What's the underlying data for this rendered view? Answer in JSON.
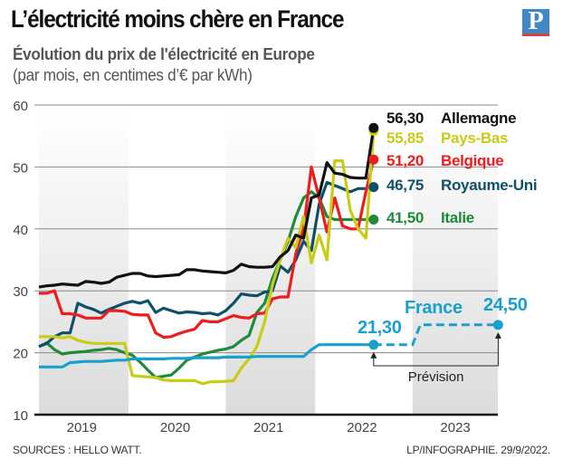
{
  "header": {
    "title": "L’électricité moins chère en France",
    "subtitle": "Évolution du prix de l'électricité en Europe",
    "unit_note": "(par mois, en centimes d’€ par kWh)",
    "logo_letter": "P"
  },
  "footer": {
    "source": "SOURCES : HELLO WATT.",
    "credit": "LP/INFOGRAPHIE.  29/9/2022."
  },
  "chart_data": {
    "type": "line",
    "title": "Évolution du prix de l'électricité en Europe",
    "ylabel": "(par mois, en centimes d’€ par kWh)",
    "ylim": [
      10,
      60
    ],
    "yticks": [
      "10",
      "20",
      "30",
      "40",
      "50",
      "60"
    ],
    "xticks": [
      "2019",
      "2020",
      "2021",
      "2022",
      "2023"
    ],
    "xlim": [
      "2019-01",
      "2023-12"
    ],
    "grid": true,
    "x": [
      "2019-01",
      "2019-02",
      "2019-03",
      "2019-04",
      "2019-05",
      "2019-06",
      "2019-07",
      "2019-08",
      "2019-09",
      "2019-10",
      "2019-11",
      "2019-12",
      "2020-01",
      "2020-02",
      "2020-03",
      "2020-04",
      "2020-05",
      "2020-06",
      "2020-07",
      "2020-08",
      "2020-09",
      "2020-10",
      "2020-11",
      "2020-12",
      "2021-01",
      "2021-02",
      "2021-03",
      "2021-04",
      "2021-05",
      "2021-06",
      "2021-07",
      "2021-08",
      "2021-09",
      "2021-10",
      "2021-11",
      "2021-12",
      "2022-01",
      "2022-02",
      "2022-03",
      "2022-04",
      "2022-05",
      "2022-06",
      "2022-07",
      "2022-08"
    ],
    "series": [
      {
        "name": "Italie",
        "last_label": "41,50",
        "color": "#1e8a3c",
        "values": [
          21,
          21.6,
          20.5,
          19.8,
          20,
          20.1,
          20.2,
          20.4,
          20.5,
          20.7,
          20.5,
          20,
          19.6,
          18.5,
          17.2,
          16,
          16.2,
          16.4,
          17.5,
          18.8,
          19.3,
          19.8,
          20.1,
          20.4,
          20.6,
          21,
          22,
          22.8,
          26.5,
          28,
          32,
          35,
          38,
          42,
          45,
          46,
          45,
          42,
          41.5,
          41.5,
          41.5,
          41.5,
          41.5,
          41.5
        ]
      },
      {
        "name": "Royaume-Uni",
        "last_label": "46,75",
        "color": "#0f5069",
        "values": [
          21,
          21.5,
          22.6,
          23.2,
          23.2,
          28,
          27.4,
          27,
          26.4,
          27,
          27.5,
          28,
          28.3,
          28,
          28.4,
          26.5,
          27.2,
          26.8,
          26.4,
          26.6,
          26.5,
          26.3,
          26.4,
          26.1,
          26.8,
          28,
          29.5,
          29.3,
          29.2,
          29.8,
          30,
          34,
          33,
          35,
          38,
          36.5,
          44,
          47.5,
          47,
          46.5,
          46,
          46.5,
          46.5,
          46.75
        ]
      },
      {
        "name": "Belgique",
        "last_label": "51,20",
        "color": "#ee1c1c",
        "values": [
          29.6,
          29.6,
          30,
          26.3,
          26.3,
          26.1,
          25.6,
          25.6,
          25.6,
          26.8,
          26.8,
          26.7,
          26.2,
          26.1,
          26.1,
          23.2,
          22.5,
          22.6,
          23.1,
          23.5,
          23.8,
          25.2,
          25,
          25,
          25.5,
          26,
          25.7,
          25.6,
          26.3,
          26.4,
          28.7,
          29,
          29,
          36,
          40,
          50,
          45,
          39.5,
          45,
          40.5,
          40,
          40,
          46,
          51.2
        ]
      },
      {
        "name": "Pays-Bas",
        "last_label": "55,85",
        "color": "#c8cc16",
        "values": [
          22.6,
          22.6,
          22.6,
          22.4,
          22.6,
          22,
          21.7,
          21.5,
          21.5,
          21.5,
          21.5,
          21.5,
          16.3,
          16.2,
          16.1,
          16,
          15.6,
          15.5,
          15.5,
          15.5,
          15.5,
          15,
          15.3,
          15.3,
          15.4,
          15.5,
          17.5,
          19,
          21,
          25,
          31,
          35,
          38.5,
          37,
          42,
          34.5,
          39,
          35,
          51,
          51,
          43,
          40,
          38.5,
          55.85
        ]
      },
      {
        "name": "Allemagne",
        "last_label": "56,30",
        "color": "#111111",
        "values": [
          30.6,
          30.8,
          30.9,
          31.1,
          31,
          30.9,
          31.5,
          31.4,
          31.2,
          31.4,
          32.2,
          32.5,
          32.8,
          32.8,
          32.4,
          32.3,
          32.4,
          32.5,
          32.6,
          33.4,
          33.4,
          33.2,
          33.1,
          33,
          32.9,
          33.3,
          34.3,
          33.9,
          33.8,
          33.8,
          33.9,
          35.5,
          36.5,
          39,
          38.5,
          45,
          45.5,
          50.7,
          49,
          48.8,
          48.3,
          48.2,
          48.2,
          56.3
        ]
      },
      {
        "name": "France",
        "last_label": "21,30",
        "color": "#1aa0cc",
        "values": [
          17.7,
          17.7,
          17.7,
          17.7,
          18.4,
          18.5,
          18.6,
          18.6,
          18.6,
          18.7,
          18.8,
          18.8,
          19,
          19,
          19,
          19,
          19,
          19.1,
          19.1,
          19.1,
          19.2,
          19.2,
          19.2,
          19.2,
          19.3,
          19.3,
          19.3,
          19.3,
          19.4,
          19.4,
          19.4,
          19.4,
          19.4,
          19.4,
          19.4,
          20.5,
          21.3,
          21.3,
          21.3,
          21.3,
          21.3,
          21.3,
          21.3,
          21.3
        ],
        "forecast": {
          "label": "Prévision",
          "end_label": "24,50",
          "points": [
            [
              "2022-08",
              21.3
            ],
            [
              "2023-01",
              21.3
            ],
            [
              "2023-02",
              24.5
            ],
            [
              "2023-12",
              24.5
            ]
          ]
        }
      }
    ]
  }
}
